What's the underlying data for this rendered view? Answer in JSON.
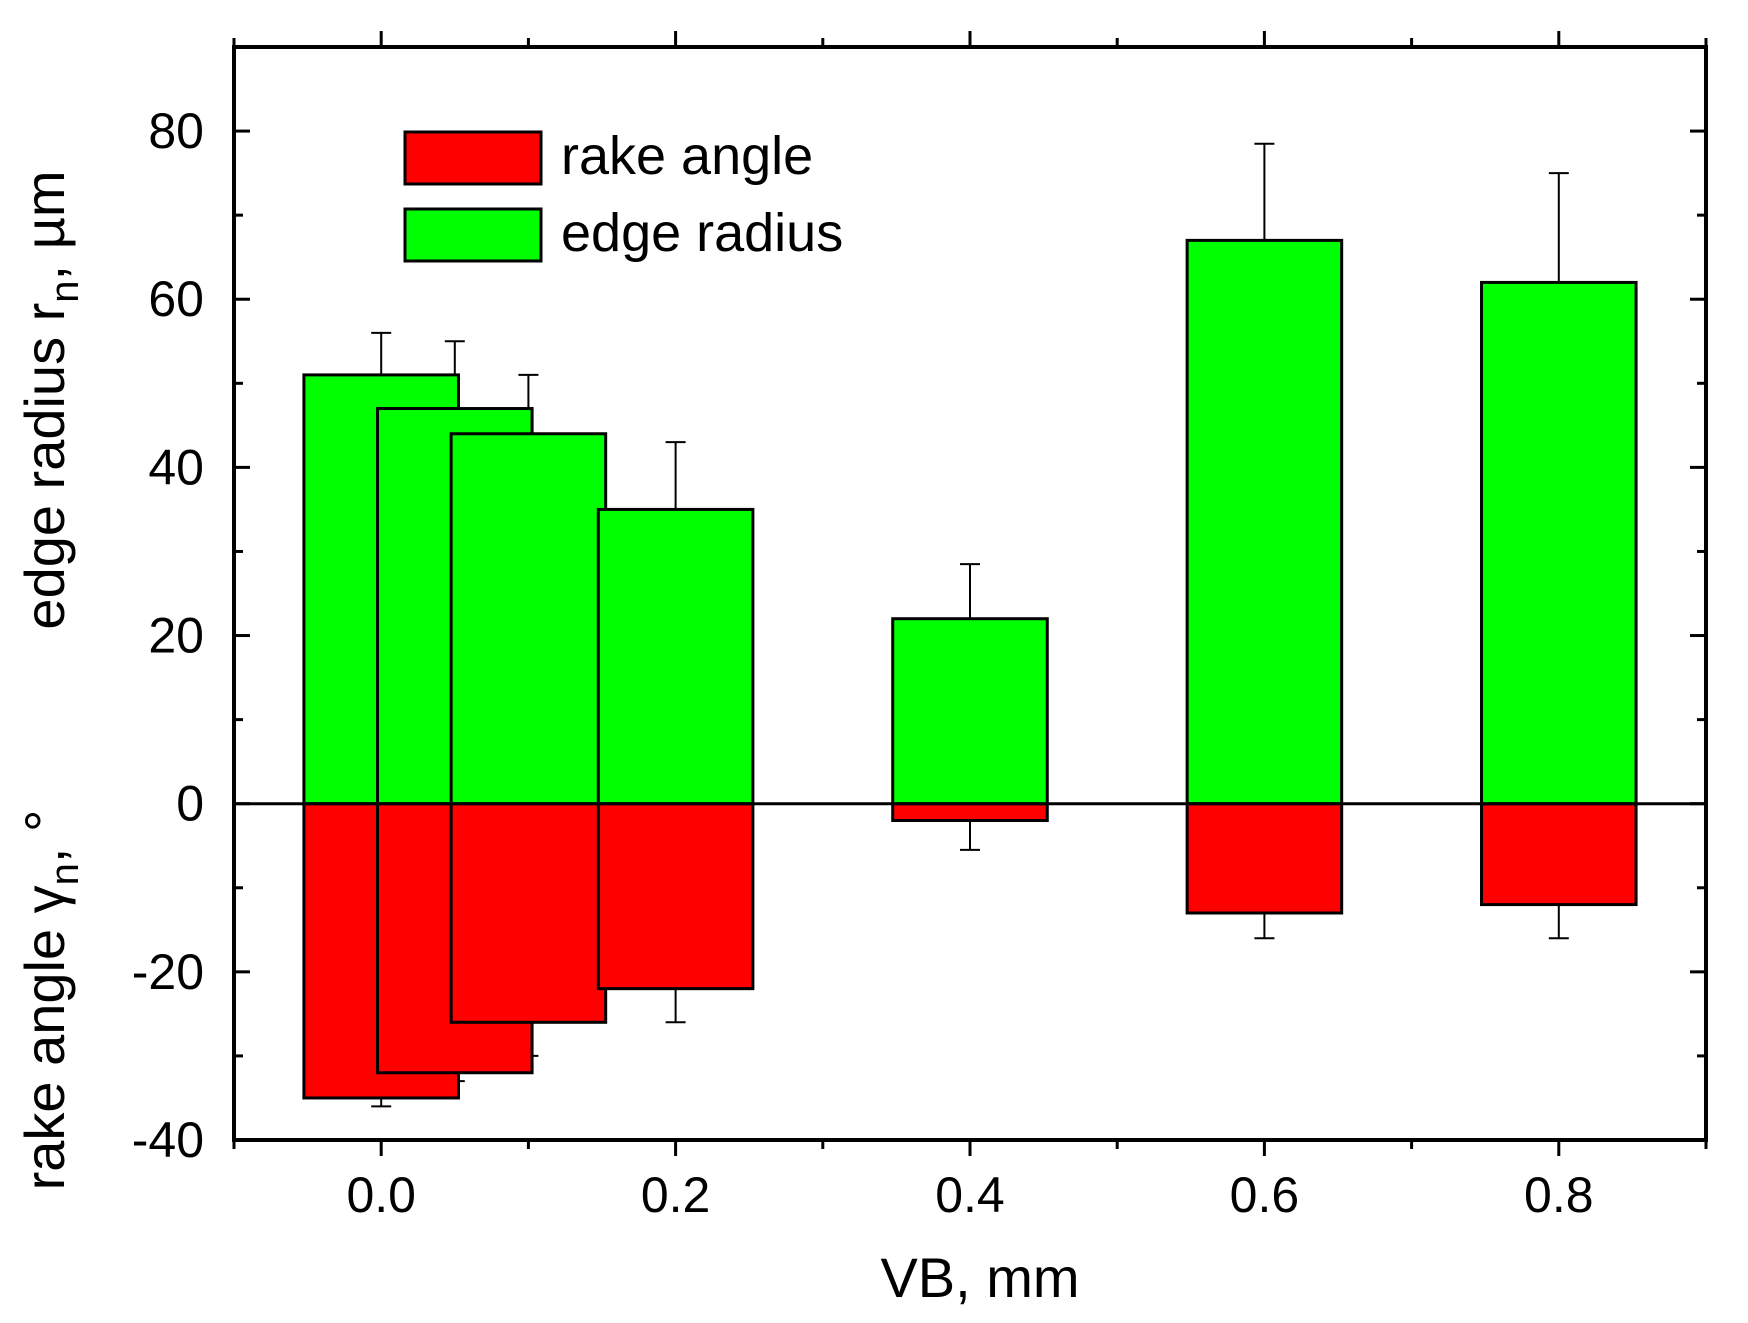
{
  "chart_data": {
    "type": "bar",
    "title": "",
    "xlabel": "VB, mm",
    "ylabel_top": {
      "main": "edge radius r",
      "sub": "n",
      "tail": ", µm"
    },
    "ylabel_bottom": {
      "main": "rake angle γ",
      "sub": "n",
      "tail": ", °"
    },
    "xlim": [
      -0.1,
      0.9
    ],
    "ylim": [
      -40,
      90
    ],
    "x_ticks": [
      0.0,
      0.2,
      0.4,
      0.6,
      0.8
    ],
    "x_tick_labels": [
      "0.0",
      "0.2",
      "0.4",
      "0.6",
      "0.8"
    ],
    "y_ticks": [
      -40,
      -20,
      0,
      20,
      40,
      60,
      80
    ],
    "y_tick_labels": [
      "-40",
      "-20",
      "0",
      "20",
      "40",
      "60",
      "80"
    ],
    "bar_width": 0.105,
    "legend_position": "top-left",
    "series": [
      {
        "name": "rake angle",
        "color": "#ff0000",
        "x": [
          0.0,
          0.05,
          0.1,
          0.2,
          0.4,
          0.6,
          0.8
        ],
        "values": [
          -35,
          -32,
          -26,
          -22,
          -2,
          -13,
          -12
        ],
        "error_tips": [
          -36,
          -33,
          -30,
          -26,
          -5.5,
          -16,
          -16
        ]
      },
      {
        "name": "edge radius",
        "color": "#00ff00",
        "x": [
          0.0,
          0.05,
          0.1,
          0.2,
          0.4,
          0.6,
          0.8
        ],
        "values": [
          51,
          47,
          44,
          35,
          22,
          67,
          62
        ],
        "error_tips": [
          56,
          55,
          51,
          43,
          28.5,
          78.5,
          75
        ]
      }
    ]
  }
}
